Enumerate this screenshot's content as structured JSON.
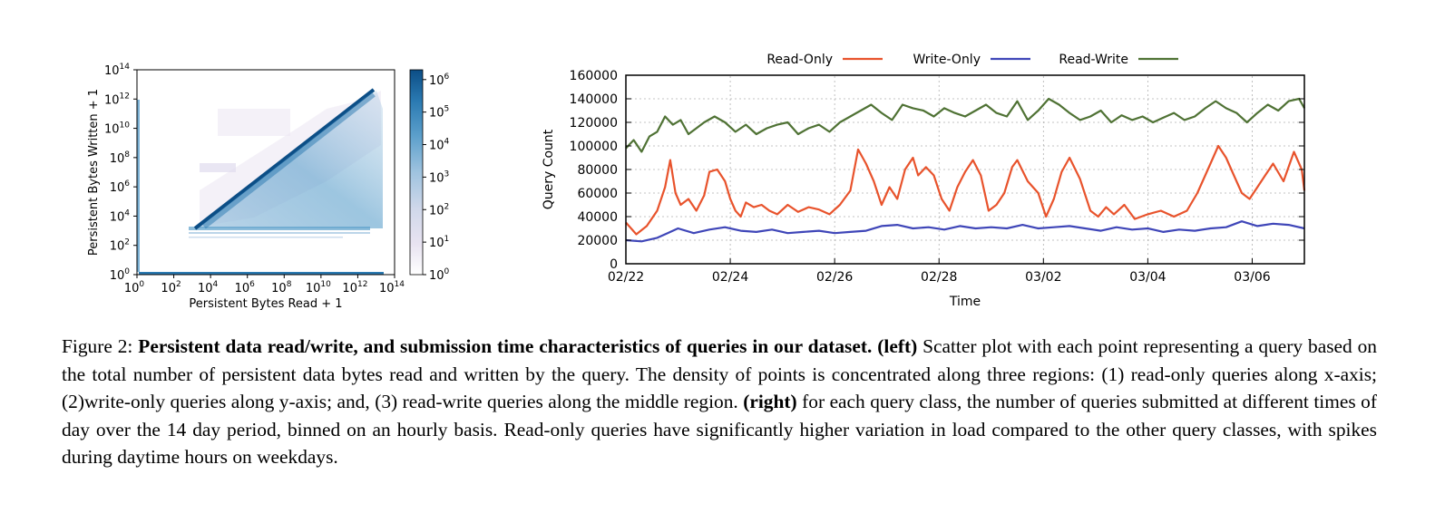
{
  "chart_data": [
    {
      "type": "heatmap",
      "xlabel": "Persistent Bytes Read + 1",
      "ylabel": "Persistent Bytes Written + 1",
      "x_scale": "log",
      "y_scale": "log",
      "xlim": [
        1,
        100000000000000.0
      ],
      "ylim": [
        1,
        100000000000000.0
      ],
      "x_ticks": [
        {
          "base": "10",
          "exp": "0"
        },
        {
          "base": "10",
          "exp": "2"
        },
        {
          "base": "10",
          "exp": "4"
        },
        {
          "base": "10",
          "exp": "6"
        },
        {
          "base": "10",
          "exp": "8"
        },
        {
          "base": "10",
          "exp": "10"
        },
        {
          "base": "10",
          "exp": "12"
        },
        {
          "base": "10",
          "exp": "14"
        }
      ],
      "y_ticks": [
        {
          "base": "10",
          "exp": "0"
        },
        {
          "base": "10",
          "exp": "2"
        },
        {
          "base": "10",
          "exp": "4"
        },
        {
          "base": "10",
          "exp": "6"
        },
        {
          "base": "10",
          "exp": "8"
        },
        {
          "base": "10",
          "exp": "10"
        },
        {
          "base": "10",
          "exp": "12"
        },
        {
          "base": "10",
          "exp": "14"
        }
      ],
      "colorbar_scale": "log",
      "colorbar_range": [
        1,
        2000000.0
      ],
      "colorbar_ticks": [
        {
          "base": "10",
          "exp": "0"
        },
        {
          "base": "10",
          "exp": "1"
        },
        {
          "base": "10",
          "exp": "2"
        },
        {
          "base": "10",
          "exp": "3"
        },
        {
          "base": "10",
          "exp": "4"
        },
        {
          "base": "10",
          "exp": "5"
        },
        {
          "base": "10",
          "exp": "6"
        }
      ],
      "colormap": [
        "#ffffff",
        "#e8e3f1",
        "#d0d8ea",
        "#9fc3df",
        "#5b9fcb",
        "#2a79b1",
        "#0c4e86"
      ],
      "dense_regions": [
        "diagonal",
        "x-axis",
        "y-axis"
      ]
    },
    {
      "type": "line",
      "xlabel": "Time",
      "ylabel": "Query Count",
      "ylim": [
        0,
        160000
      ],
      "y_ticks": [
        "0",
        "20000",
        "40000",
        "60000",
        "80000",
        "100000",
        "120000",
        "140000",
        "160000"
      ],
      "x_ticks": [
        "02/22",
        "02/24",
        "02/26",
        "02/28",
        "03/02",
        "03/04",
        "03/06"
      ],
      "x_tick_days": [
        0,
        2,
        4,
        6,
        8,
        10,
        12
      ],
      "xlim_days": [
        0,
        13.0
      ],
      "grid": true,
      "legend": "top",
      "series": [
        {
          "name": "Read-Only",
          "color": "#e8532c",
          "x_days": [
            0,
            0.2,
            0.4,
            0.6,
            0.75,
            0.85,
            0.95,
            1.05,
            1.2,
            1.35,
            1.5,
            1.6,
            1.75,
            1.9,
            2.0,
            2.1,
            2.2,
            2.3,
            2.45,
            2.6,
            2.75,
            2.9,
            3.1,
            3.3,
            3.5,
            3.7,
            3.9,
            4.1,
            4.3,
            4.45,
            4.6,
            4.75,
            4.9,
            5.05,
            5.2,
            5.35,
            5.5,
            5.6,
            5.75,
            5.9,
            6.05,
            6.2,
            6.35,
            6.5,
            6.65,
            6.8,
            6.95,
            7.1,
            7.25,
            7.4,
            7.5,
            7.7,
            7.9,
            8.05,
            8.2,
            8.35,
            8.5,
            8.7,
            8.9,
            9.05,
            9.2,
            9.35,
            9.55,
            9.75,
            10.0,
            10.25,
            10.5,
            10.75,
            10.95,
            11.15,
            11.35,
            11.5,
            11.65,
            11.8,
            11.95,
            12.1,
            12.25,
            12.4,
            12.6,
            12.8,
            12.95,
            13.0
          ],
          "values": [
            35000,
            25000,
            32000,
            45000,
            65000,
            88000,
            60000,
            50000,
            55000,
            45000,
            58000,
            78000,
            80000,
            70000,
            55000,
            45000,
            40000,
            52000,
            48000,
            50000,
            45000,
            42000,
            50000,
            44000,
            48000,
            46000,
            42000,
            50000,
            62000,
            97000,
            85000,
            70000,
            50000,
            65000,
            55000,
            80000,
            90000,
            75000,
            82000,
            75000,
            55000,
            45000,
            65000,
            78000,
            88000,
            75000,
            45000,
            50000,
            60000,
            82000,
            88000,
            70000,
            60000,
            40000,
            55000,
            78000,
            90000,
            72000,
            45000,
            40000,
            48000,
            42000,
            50000,
            38000,
            42000,
            45000,
            40000,
            45000,
            60000,
            80000,
            100000,
            90000,
            75000,
            60000,
            55000,
            65000,
            75000,
            85000,
            70000,
            95000,
            80000,
            62000
          ]
        },
        {
          "name": "Write-Only",
          "color": "#3f46b8",
          "x_days": [
            0,
            0.3,
            0.6,
            0.8,
            1.0,
            1.3,
            1.6,
            1.9,
            2.2,
            2.5,
            2.8,
            3.1,
            3.4,
            3.7,
            4.0,
            4.3,
            4.6,
            4.9,
            5.2,
            5.5,
            5.8,
            6.1,
            6.4,
            6.7,
            7.0,
            7.3,
            7.6,
            7.9,
            8.2,
            8.5,
            8.8,
            9.1,
            9.4,
            9.7,
            10.0,
            10.3,
            10.6,
            10.9,
            11.2,
            11.5,
            11.8,
            12.1,
            12.4,
            12.7,
            13.0
          ],
          "values": [
            20000,
            19000,
            22000,
            26000,
            30000,
            26000,
            29000,
            31000,
            28000,
            27000,
            29000,
            26000,
            27000,
            28000,
            26000,
            27000,
            28000,
            32000,
            33000,
            30000,
            31000,
            29000,
            32000,
            30000,
            31000,
            30000,
            33000,
            30000,
            31000,
            32000,
            30000,
            28000,
            31000,
            29000,
            30000,
            27000,
            29000,
            28000,
            30000,
            31000,
            36000,
            32000,
            34000,
            33000,
            30000
          ]
        },
        {
          "name": "Read-Write",
          "color": "#4f7234",
          "x_days": [
            0,
            0.15,
            0.3,
            0.45,
            0.6,
            0.75,
            0.9,
            1.05,
            1.2,
            1.35,
            1.5,
            1.7,
            1.9,
            2.1,
            2.3,
            2.5,
            2.7,
            2.9,
            3.1,
            3.3,
            3.5,
            3.7,
            3.9,
            4.1,
            4.3,
            4.5,
            4.7,
            4.9,
            5.1,
            5.3,
            5.5,
            5.7,
            5.9,
            6.1,
            6.3,
            6.5,
            6.7,
            6.9,
            7.1,
            7.3,
            7.5,
            7.7,
            7.9,
            8.1,
            8.3,
            8.5,
            8.7,
            8.9,
            9.1,
            9.3,
            9.5,
            9.7,
            9.9,
            10.1,
            10.3,
            10.5,
            10.7,
            10.9,
            11.1,
            11.3,
            11.5,
            11.7,
            11.9,
            12.1,
            12.3,
            12.5,
            12.7,
            12.9,
            13.0
          ],
          "values": [
            98000,
            105000,
            95000,
            108000,
            112000,
            125000,
            118000,
            122000,
            110000,
            115000,
            120000,
            125000,
            120000,
            112000,
            118000,
            110000,
            115000,
            118000,
            120000,
            110000,
            115000,
            118000,
            112000,
            120000,
            125000,
            130000,
            135000,
            128000,
            122000,
            135000,
            132000,
            130000,
            125000,
            132000,
            128000,
            125000,
            130000,
            135000,
            128000,
            125000,
            138000,
            122000,
            130000,
            140000,
            135000,
            128000,
            122000,
            125000,
            130000,
            120000,
            126000,
            122000,
            125000,
            120000,
            124000,
            128000,
            122000,
            125000,
            132000,
            138000,
            132000,
            128000,
            120000,
            128000,
            135000,
            130000,
            138000,
            140000,
            132000
          ]
        }
      ]
    }
  ],
  "caption": {
    "figure_label": "Figure 2:",
    "bold_title": "Persistent data read/write, and submission time characteristics of queries in our dataset.",
    "left_label": "(left)",
    "left_text": "Scatter plot with each point representing a query based on the total number of persistent data bytes read and written by the query. The density of points is concentrated along three regions: (1) read-only queries along x-axis; (2)write-only queries along y-axis; and, (3) read-write queries along the middle region.",
    "right_label": "(right)",
    "right_text": "for each query class, the number of queries submitted at different times of day over the 14 day period, binned on an hourly basis. Read-only queries have significantly higher variation in load compared to the other query classes, with spikes during daytime hours on weekdays."
  }
}
